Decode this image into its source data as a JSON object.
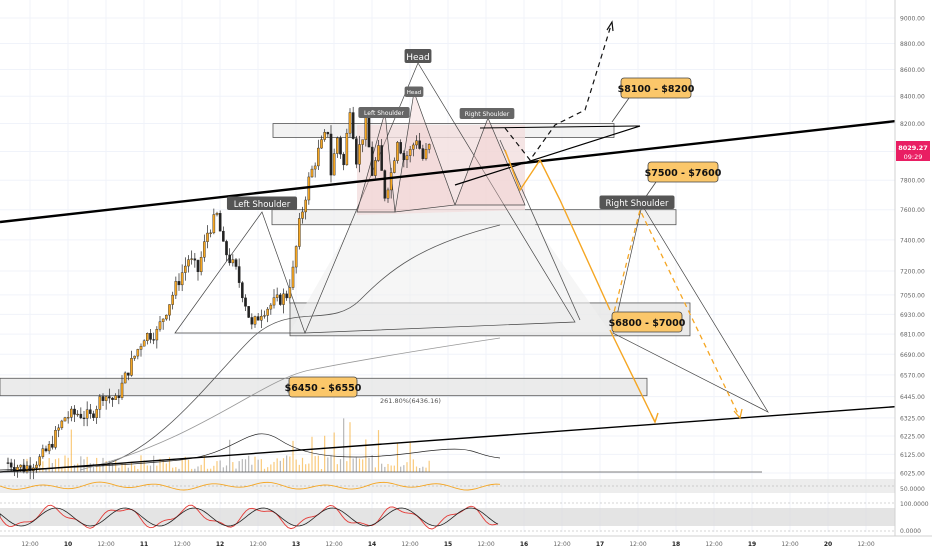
{
  "chart_data": {
    "type": "candlestick",
    "symbol": "BTCUSD",
    "y_axis": {
      "ticks": [
        "9000.00",
        "8800.00",
        "8600.00",
        "8400.00",
        "8200.00",
        "8000.00",
        "7800.00",
        "7600.00",
        "7400.00",
        "7200.00",
        "7050.00",
        "6930.00",
        "6810.00",
        "6690.00",
        "6570.00",
        "6445.00",
        "6325.00",
        "6225.00",
        "6125.00",
        "6025.00"
      ],
      "tick_values": [
        9000,
        8800,
        8600,
        8400,
        8200,
        8000,
        7800,
        7600,
        7400,
        7200,
        7050,
        6930,
        6810,
        6690,
        6570,
        6445,
        6325,
        6225,
        6125,
        6025
      ],
      "scale": "log"
    },
    "x_axis": {
      "ticks": [
        "12:00",
        "10",
        "12:00",
        "11",
        "12:00",
        "12",
        "12:00",
        "13",
        "12:00",
        "14",
        "12:00",
        "15",
        "12:00",
        "16",
        "12:00",
        "17",
        "12:00",
        "18",
        "12:00",
        "19",
        "12:00",
        "20",
        "12:00"
      ]
    },
    "last_price": {
      "value": "8029.27",
      "countdown": "09:29",
      "color": "#e91e63"
    },
    "ohlc_anchors": [
      {
        "t": 0,
        "v": 6080
      },
      {
        "t": 5,
        "v": 6050
      },
      {
        "t": 10,
        "v": 6100
      },
      {
        "t": 13,
        "v": 6160
      },
      {
        "t": 18,
        "v": 6330
      },
      {
        "t": 22,
        "v": 6350
      },
      {
        "t": 26,
        "v": 6330
      },
      {
        "t": 30,
        "v": 6460
      },
      {
        "t": 34,
        "v": 6420
      },
      {
        "t": 38,
        "v": 6600
      },
      {
        "t": 43,
        "v": 6800
      },
      {
        "t": 47,
        "v": 6820
      },
      {
        "t": 53,
        "v": 7100
      },
      {
        "t": 57,
        "v": 7280
      },
      {
        "t": 60,
        "v": 7200
      },
      {
        "t": 63,
        "v": 7450
      },
      {
        "t": 66,
        "v": 7560
      },
      {
        "t": 68,
        "v": 7350
      },
      {
        "t": 72,
        "v": 7200
      },
      {
        "t": 75,
        "v": 7000
      },
      {
        "t": 77,
        "v": 6850
      },
      {
        "t": 80,
        "v": 6950
      },
      {
        "t": 84,
        "v": 7000
      },
      {
        "t": 88,
        "v": 7050
      },
      {
        "t": 90,
        "v": 7200
      },
      {
        "t": 92,
        "v": 7500
      },
      {
        "t": 95,
        "v": 7800
      },
      {
        "t": 98,
        "v": 8000
      },
      {
        "t": 101,
        "v": 8150
      },
      {
        "t": 102,
        "v": 7850
      },
      {
        "t": 104,
        "v": 8100
      },
      {
        "t": 106,
        "v": 7900
      },
      {
        "t": 108,
        "v": 8330
      },
      {
        "t": 110,
        "v": 7950
      },
      {
        "t": 113,
        "v": 8200
      },
      {
        "t": 115,
        "v": 7850
      },
      {
        "t": 117,
        "v": 8000
      },
      {
        "t": 119,
        "v": 7700
      },
      {
        "t": 121,
        "v": 7850
      },
      {
        "t": 123,
        "v": 8100
      },
      {
        "t": 125,
        "v": 7950
      },
      {
        "t": 127,
        "v": 8000
      },
      {
        "t": 129,
        "v": 8100
      },
      {
        "t": 131,
        "v": 7950
      },
      {
        "t": 133,
        "v": 8029
      }
    ],
    "zones": [
      {
        "label": "$8100 - $8200",
        "low": 8100,
        "high": 8200
      },
      {
        "label": "$7500 - $7600",
        "low": 7500,
        "high": 7600
      },
      {
        "label": "$6800 - $7000",
        "low": 6800,
        "high": 7000
      },
      {
        "label": "$6450 - $6550",
        "low": 6450,
        "high": 6550
      }
    ],
    "annotations": [
      "Head",
      "Left Shoulder",
      "Right Shoulder",
      "Left Shoulder",
      "Head",
      "Right Shoulder",
      "261.80%(6436.16)"
    ],
    "colors": {
      "up": "#ffffff",
      "down": "#000000",
      "orange": "#f5a623",
      "callout_bg": "#fbc76a",
      "pattern_fill": "#f1c9c9"
    },
    "indicators": {
      "rsi_level": "50.0000",
      "stoch_levels": [
        "100.0000",
        "0.0000"
      ]
    }
  }
}
